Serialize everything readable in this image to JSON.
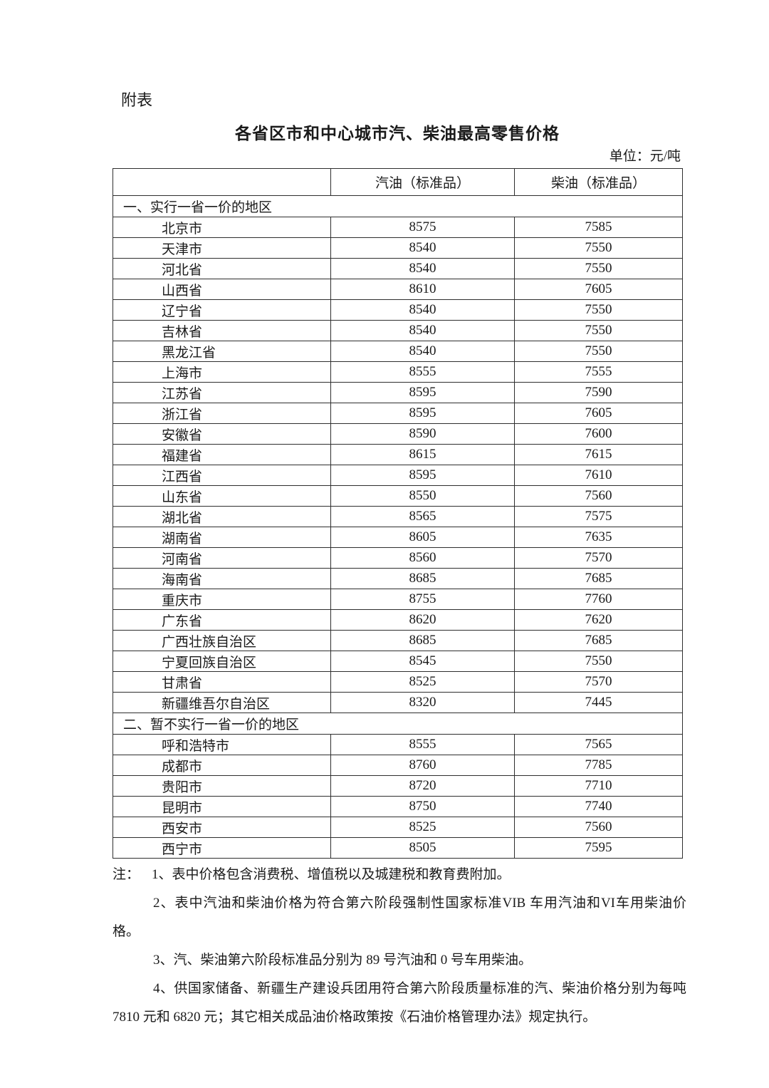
{
  "theme": {
    "text_color": "#1a1a1a",
    "border_color": "#2e2e2e",
    "background": "#ffffff"
  },
  "page": {
    "attachment_label": "附表",
    "title": "各省区市和中心城市汽、柴油最高零售价格",
    "unit_label": "单位：元/吨"
  },
  "table": {
    "columns": [
      "",
      "汽油（标准品）",
      "柴油（标准品）"
    ],
    "sections": [
      {
        "header": "一、实行一省一价的地区",
        "rows": [
          {
            "region": "北京市",
            "gasoline": "8575",
            "diesel": "7585"
          },
          {
            "region": "天津市",
            "gasoline": "8540",
            "diesel": "7550"
          },
          {
            "region": "河北省",
            "gasoline": "8540",
            "diesel": "7550"
          },
          {
            "region": "山西省",
            "gasoline": "8610",
            "diesel": "7605"
          },
          {
            "region": "辽宁省",
            "gasoline": "8540",
            "diesel": "7550"
          },
          {
            "region": "吉林省",
            "gasoline": "8540",
            "diesel": "7550"
          },
          {
            "region": "黑龙江省",
            "gasoline": "8540",
            "diesel": "7550"
          },
          {
            "region": "上海市",
            "gasoline": "8555",
            "diesel": "7555"
          },
          {
            "region": "江苏省",
            "gasoline": "8595",
            "diesel": "7590"
          },
          {
            "region": "浙江省",
            "gasoline": "8595",
            "diesel": "7605"
          },
          {
            "region": "安徽省",
            "gasoline": "8590",
            "diesel": "7600"
          },
          {
            "region": "福建省",
            "gasoline": "8615",
            "diesel": "7615"
          },
          {
            "region": "江西省",
            "gasoline": "8595",
            "diesel": "7610"
          },
          {
            "region": "山东省",
            "gasoline": "8550",
            "diesel": "7560"
          },
          {
            "region": "湖北省",
            "gasoline": "8565",
            "diesel": "7575"
          },
          {
            "region": "湖南省",
            "gasoline": "8605",
            "diesel": "7635"
          },
          {
            "region": "河南省",
            "gasoline": "8560",
            "diesel": "7570"
          },
          {
            "region": "海南省",
            "gasoline": "8685",
            "diesel": "7685"
          },
          {
            "region": "重庆市",
            "gasoline": "8755",
            "diesel": "7760"
          },
          {
            "region": "广东省",
            "gasoline": "8620",
            "diesel": "7620"
          },
          {
            "region": "广西壮族自治区",
            "gasoline": "8685",
            "diesel": "7685"
          },
          {
            "region": "宁夏回族自治区",
            "gasoline": "8545",
            "diesel": "7550"
          },
          {
            "region": "甘肃省",
            "gasoline": "8525",
            "diesel": "7570"
          },
          {
            "region": "新疆维吾尔自治区",
            "gasoline": "8320",
            "diesel": "7445"
          }
        ]
      },
      {
        "header": "二、暂不实行一省一价的地区",
        "rows": [
          {
            "region": "呼和浩特市",
            "gasoline": "8555",
            "diesel": "7565"
          },
          {
            "region": "成都市",
            "gasoline": "8760",
            "diesel": "7785"
          },
          {
            "region": "贵阳市",
            "gasoline": "8720",
            "diesel": "7710"
          },
          {
            "region": "昆明市",
            "gasoline": "8750",
            "diesel": "7740"
          },
          {
            "region": "西安市",
            "gasoline": "8525",
            "diesel": "7560"
          },
          {
            "region": "西宁市",
            "gasoline": "8505",
            "diesel": "7595"
          }
        ]
      }
    ]
  },
  "notes": {
    "label": "注：",
    "items": [
      "1、表中价格包含消费税、增值税以及城建税和教育费附加。",
      "2、表中汽油和柴油价格为符合第六阶段强制性国家标准VIB 车用汽油和VI车用柴油价格。",
      "3、汽、柴油第六阶段标准品分别为 89 号汽油和 0 号车用柴油。",
      "4、供国家储备、新疆生产建设兵团用符合第六阶段质量标准的汽、柴油价格分别为每吨 7810 元和 6820 元；其它相关成品油价格政策按《石油价格管理办法》规定执行。"
    ]
  }
}
